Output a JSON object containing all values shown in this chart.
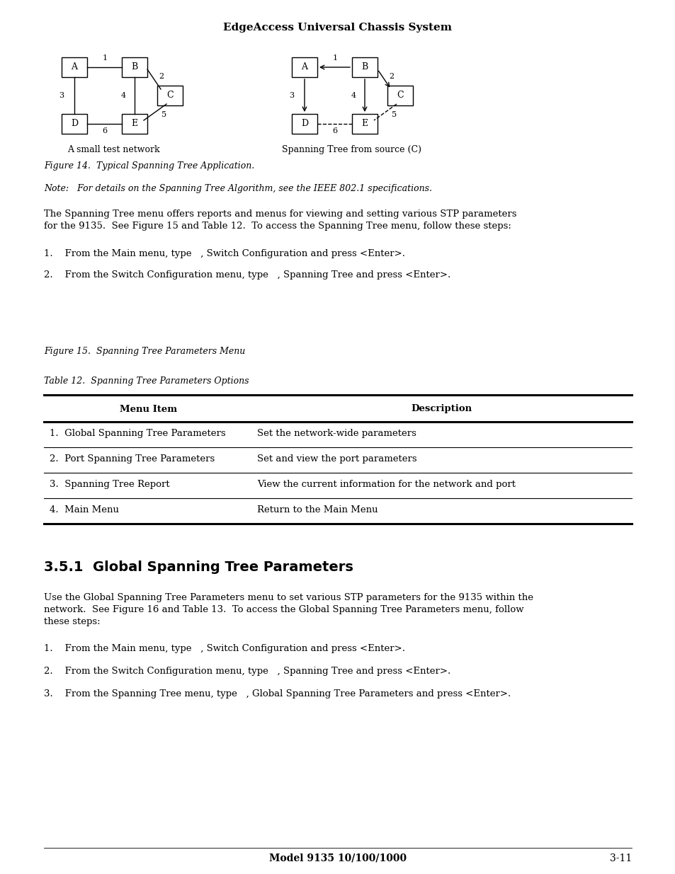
{
  "page_title": "EdgeAccess Universal Chassis System",
  "figure14_caption": "Figure 14.  Typical Spanning Tree Application.",
  "figure15_caption": "Figure 15.  Spanning Tree Parameters Menu",
  "table12_caption": "Table 12.  Spanning Tree Parameters Options",
  "table_headers": [
    "Menu Item",
    "Description"
  ],
  "table_rows": [
    [
      "1.  Global Spanning Tree Parameters",
      "Set the network-wide parameters"
    ],
    [
      "2.  Port Spanning Tree Parameters",
      "Set and view the port parameters"
    ],
    [
      "3.  Spanning Tree Report",
      "View the current information for the network and port"
    ],
    [
      "4.  Main Menu",
      "Return to the Main Menu"
    ]
  ],
  "section_heading": "3.5.1  Global Spanning Tree Parameters",
  "para1": "Use the Global Spanning Tree Parameters menu to set various STP parameters for the 9135 within the\nnetwork.  See Figure 16 and Table 13.  To access the Global Spanning Tree Parameters menu, follow\nthese steps:",
  "steps2": [
    "From the Main menu, type   , Switch Configuration and press <Enter>.",
    "From the Switch Configuration menu, type   , Spanning Tree and press <Enter>.",
    "From the Spanning Tree menu, type   , Global Spanning Tree Parameters and press <Enter>."
  ],
  "body_para1": "The Spanning Tree menu offers reports and menus for viewing and setting various STP parameters\nfor the 9135.  See Figure 15 and Table 12.  To access the Spanning Tree menu, follow these steps:",
  "steps1": [
    "From the Main menu, type   , Switch Configuration and press <Enter>.",
    "From the Switch Configuration menu, type   , Spanning Tree and press <Enter>."
  ],
  "note_text": "Note:   For details on the Spanning Tree Algorithm, see the IEEE 802.1 specifications.",
  "footer_center": "Model 9135 10/100/1000",
  "footer_right": "3-11",
  "bg_color": "#ffffff",
  "text_color": "#000000",
  "left_diagram_label": "A small test network",
  "right_diagram_label": "Spanning Tree from source (C)"
}
